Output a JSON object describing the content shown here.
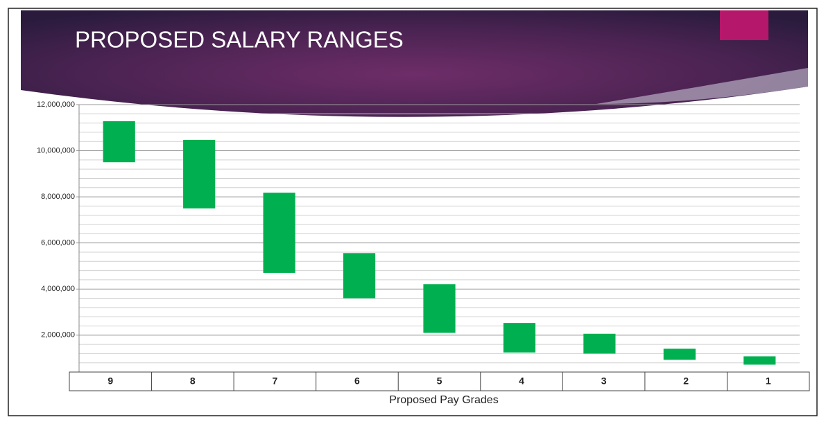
{
  "chart_data": {
    "type": "floating-bar",
    "title": "PROPOSED SALARY RANGES",
    "x_label": "Proposed Pay Grades",
    "categories": [
      "9",
      "8",
      "7",
      "6",
      "5",
      "4",
      "3",
      "2",
      "1"
    ],
    "low": [
      9500000,
      7500000,
      4700000,
      3600000,
      2100000,
      1250000,
      1200000,
      930000,
      720000
    ],
    "high": [
      11280000,
      10470000,
      8180000,
      5560000,
      4210000,
      2530000,
      2060000,
      1410000,
      1080000
    ],
    "color": "#00b050",
    "ylim": [
      400000,
      12000000
    ],
    "yticks": [
      {
        "value": 2000000,
        "label": "2,000,000"
      },
      {
        "value": 4000000,
        "label": "4,000,000"
      },
      {
        "value": 6000000,
        "label": "6,000,000"
      },
      {
        "value": 8000000,
        "label": "8,000,000"
      },
      {
        "value": 10000000,
        "label": "10,000,000"
      },
      {
        "value": 12000000,
        "label": "12,000,000"
      }
    ],
    "grid": true
  }
}
